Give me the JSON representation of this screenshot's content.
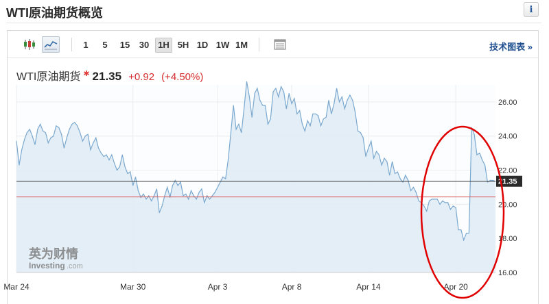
{
  "page": {
    "title": "WTI原油期货概览",
    "info_label": "i"
  },
  "toolbar": {
    "ranges": [
      "1",
      "5",
      "15",
      "30",
      "1H",
      "5H",
      "1D",
      "1W",
      "1M"
    ],
    "active_range": "1H",
    "chart_types": [
      "candlestick-icon",
      "line-chart-icon"
    ],
    "active_chart_type": "line-chart-icon",
    "export_icon": "table-icon",
    "tech_chart_label": "技术图表",
    "tech_chart_arrow": "»"
  },
  "quote": {
    "name": "WTI原油期货",
    "marker": "✱",
    "price": "21.35",
    "change": "+0.92",
    "change_pct": "(+4.50%)"
  },
  "watermark": {
    "brand_cn": "英为财情",
    "brand_en": "Investing",
    "brand_suffix": ".com"
  },
  "colors": {
    "line": "#7aa8cf",
    "area": "#e1ecf5",
    "ref_line": "#d9534f",
    "last_line": "#333333",
    "highlight": "#e00000",
    "up": "#d62c2c"
  },
  "chart_data": {
    "type": "area",
    "title": "WTI原油期货",
    "xlabel": "",
    "ylabel": "",
    "ylim": [
      16.0,
      27.0
    ],
    "grid": true,
    "y_ticks": [
      "16.00",
      "18.00",
      "20.00",
      "22.00",
      "24.00",
      "26.00"
    ],
    "x_tick_labels": [
      "Mar 24",
      "Mar 30",
      "Apr 3",
      "Apr 8",
      "Apr 14",
      "Apr 20"
    ],
    "x_tick_index": [
      0,
      44,
      76,
      104,
      133,
      166
    ],
    "last_value": "21.35",
    "reference_value": 20.43,
    "highlight": "circled region around Apr 20 price spike",
    "series": [
      {
        "name": "WTI原油期货",
        "values": [
          23.7,
          22.3,
          23.2,
          23.8,
          24.2,
          24.4,
          24.0,
          23.5,
          24.4,
          24.7,
          24.3,
          24.2,
          23.6,
          23.9,
          24.0,
          24.6,
          24.5,
          24.1,
          23.3,
          23.9,
          24.4,
          24.7,
          24.8,
          24.6,
          24.2,
          23.7,
          24.0,
          24.1,
          23.2,
          23.6,
          23.9,
          23.3,
          23.0,
          22.8,
          22.9,
          22.6,
          22.9,
          22.4,
          22.0,
          22.2,
          22.9,
          22.2,
          21.8,
          21.9,
          21.1,
          21.6,
          20.8,
          20.4,
          20.6,
          20.3,
          20.5,
          20.2,
          20.5,
          20.9,
          19.5,
          19.9,
          20.5,
          21.0,
          20.4,
          21.1,
          21.4,
          21.1,
          21.3,
          20.5,
          20.6,
          20.3,
          20.8,
          20.5,
          20.3,
          20.7,
          20.9,
          20.1,
          20.5,
          20.3,
          20.5,
          20.7,
          21.0,
          21.3,
          21.6,
          21.5,
          22.6,
          24.2,
          25.8,
          24.4,
          24.7,
          24.2,
          25.6,
          27.2,
          26.3,
          25.1,
          26.5,
          26.8,
          26.1,
          25.8,
          25.8,
          24.7,
          25.0,
          26.6,
          26.8,
          26.3,
          26.9,
          26.6,
          25.6,
          26.5,
          25.9,
          26.2,
          25.3,
          25.5,
          24.7,
          24.3,
          24.9,
          24.6,
          25.3,
          25.3,
          25.2,
          24.6,
          25.0,
          25.1,
          26.1,
          25.3,
          25.9,
          26.8,
          26.0,
          26.3,
          25.6,
          26.1,
          26.4,
          26.1,
          25.4,
          24.3,
          24.2,
          23.9,
          22.8,
          23.3,
          23.7,
          22.7,
          23.1,
          22.9,
          22.3,
          22.7,
          22.5,
          21.7,
          22.5,
          21.8,
          21.9,
          21.5,
          21.3,
          21.7,
          21.4,
          20.8,
          21.0,
          20.7,
          20.2,
          20.1,
          19.9,
          19.6,
          20.2,
          20.3,
          20.3,
          20.3,
          20.0,
          20.2,
          20.1,
          20.1,
          19.7,
          19.9,
          19.8,
          18.5,
          18.5,
          17.9,
          18.3,
          18.3,
          24.5,
          24.1,
          22.9,
          23.0,
          22.6,
          22.3,
          21.3,
          21.4,
          21.4,
          21.35
        ]
      }
    ]
  }
}
